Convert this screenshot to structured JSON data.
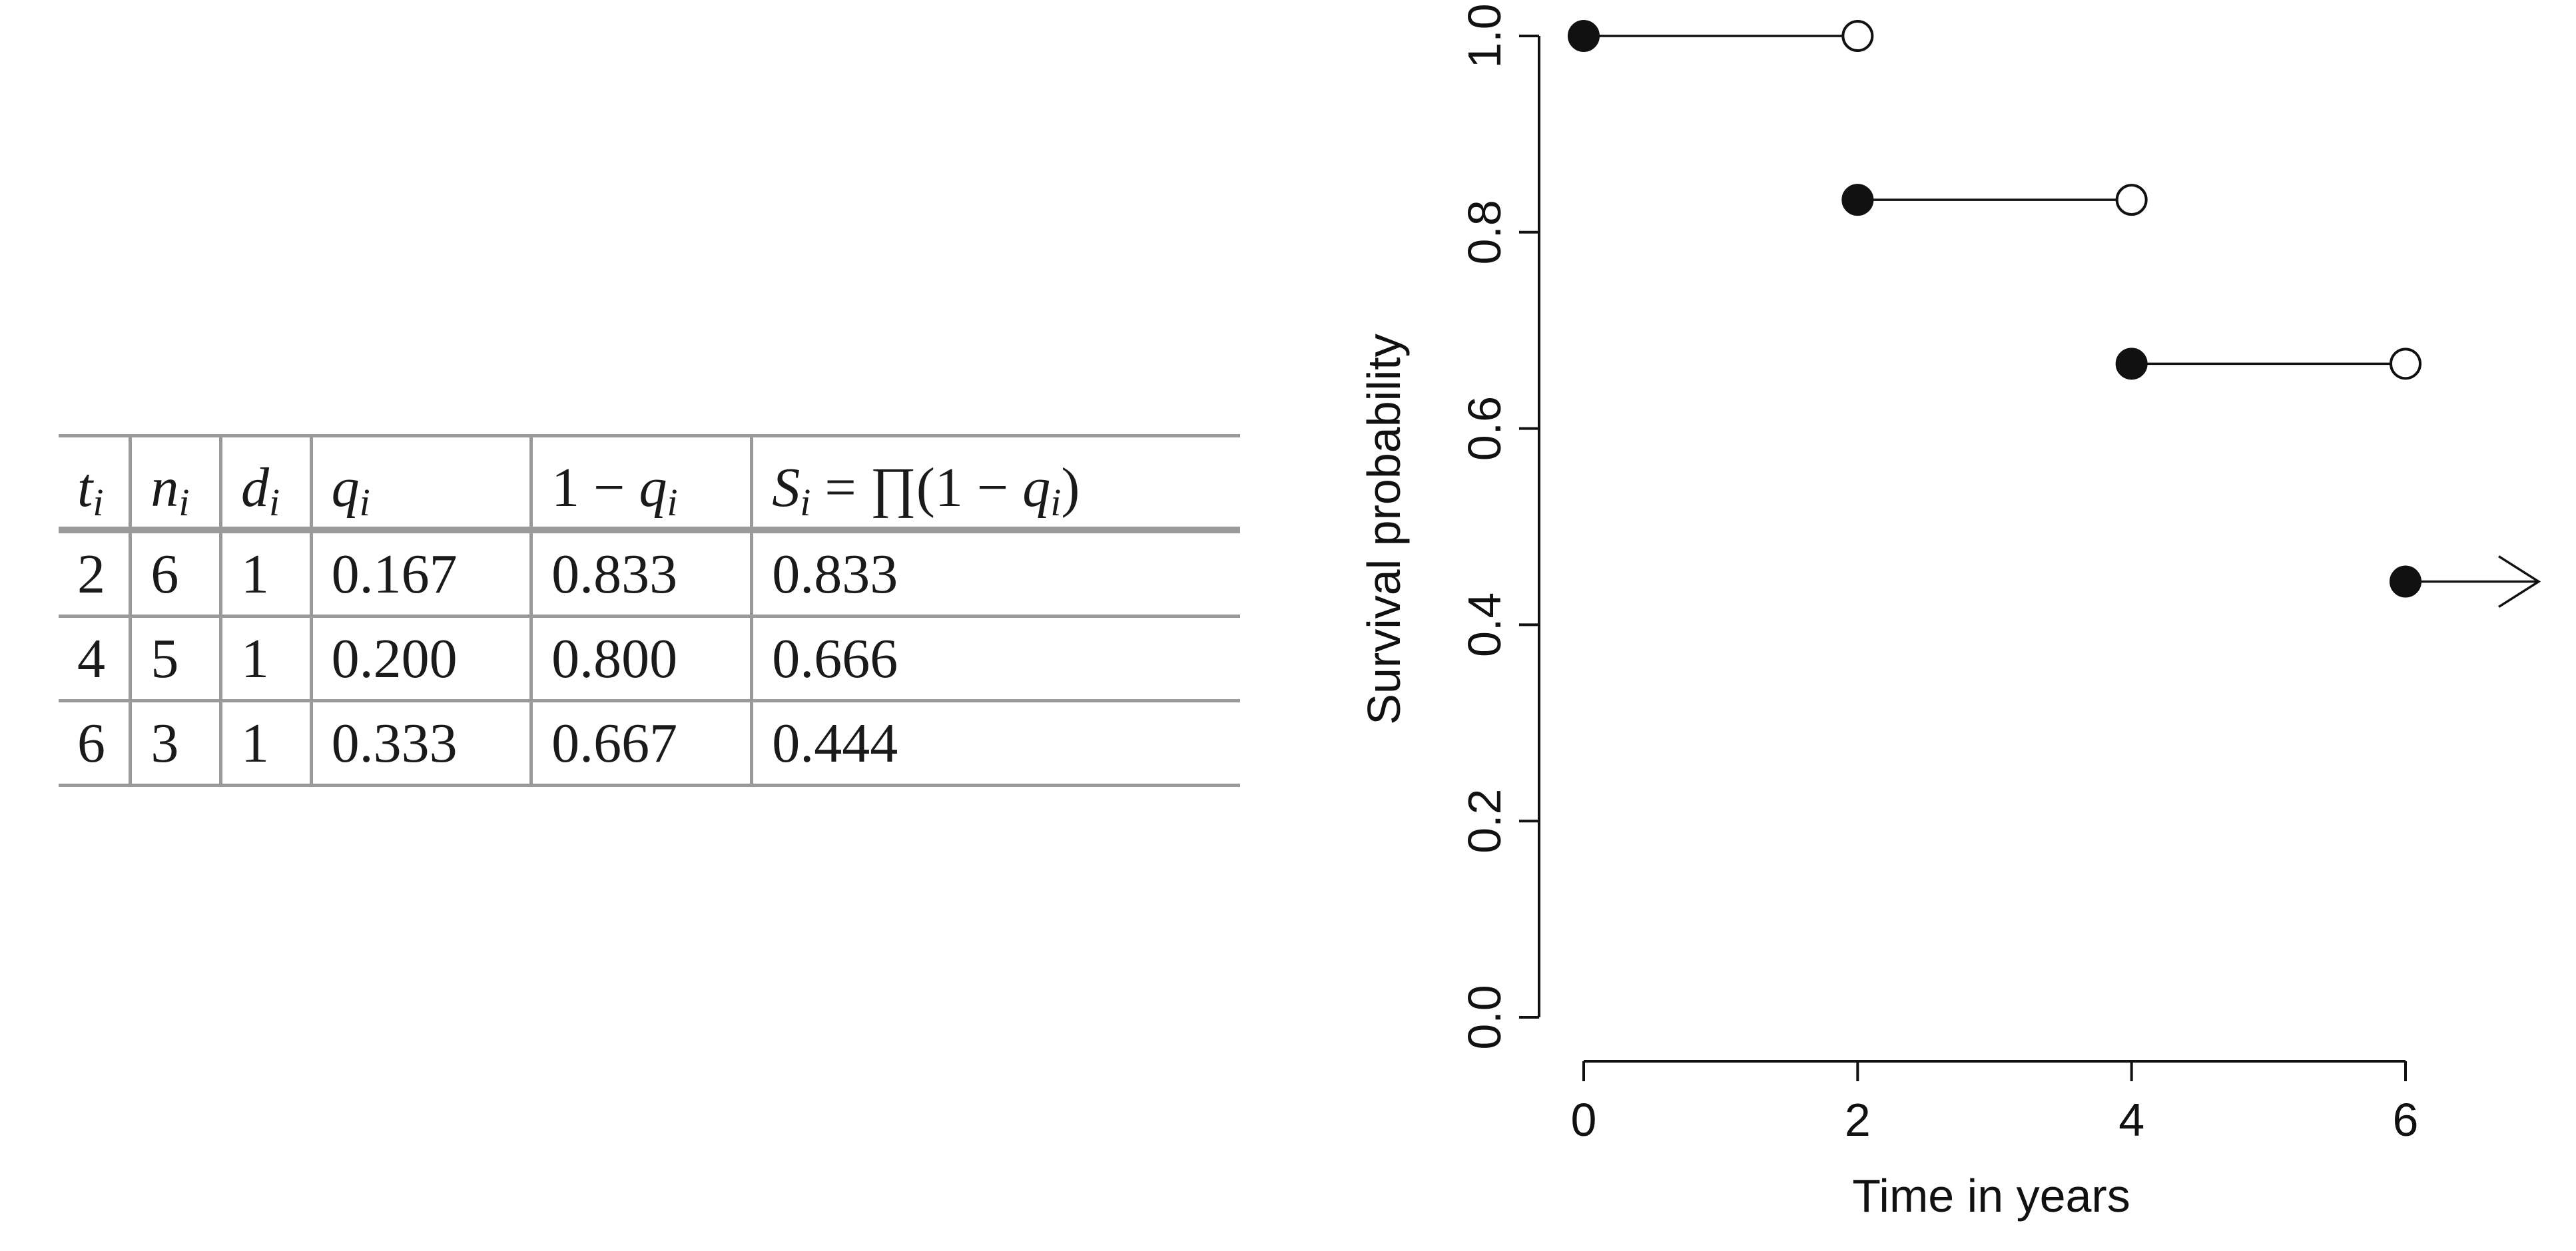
{
  "table": {
    "columns": [
      {
        "base": "t",
        "sub": "i"
      },
      {
        "base": "n",
        "sub": "i"
      },
      {
        "base": "d",
        "sub": "i"
      },
      {
        "base": "q",
        "sub": "i"
      },
      {
        "prefix": "1 − ",
        "base": "q",
        "sub": "i"
      },
      {
        "base": "S",
        "sub": "i",
        "suffix": " = ∏(1 − ",
        "base2": "q",
        "sub2": "i",
        "suffix2": ")"
      }
    ],
    "rows": [
      [
        "2",
        "6",
        "1",
        "0.167",
        "0.833",
        "0.833"
      ],
      [
        "4",
        "5",
        "1",
        "0.200",
        "0.800",
        "0.666"
      ],
      [
        "6",
        "3",
        "1",
        "0.333",
        "0.667",
        "0.444"
      ]
    ]
  },
  "chart_data": {
    "type": "line",
    "xlabel": "Time in years",
    "ylabel": "Survival probability",
    "xlim": [
      0,
      6
    ],
    "ylim": [
      0,
      1
    ],
    "xticks": [
      "0",
      "2",
      "4",
      "6"
    ],
    "yticks": [
      "0.0",
      "0.2",
      "0.4",
      "0.6",
      "0.8",
      "1.0"
    ],
    "grid": false,
    "steps": [
      {
        "x_start": 0,
        "x_end": 2,
        "y": 1.0,
        "end": "open"
      },
      {
        "x_start": 2,
        "x_end": 4,
        "y": 0.833,
        "end": "open"
      },
      {
        "x_start": 4,
        "x_end": 6,
        "y": 0.666,
        "end": "open"
      },
      {
        "x_start": 6,
        "x_end": null,
        "y": 0.444,
        "end": "arrow"
      }
    ],
    "colors": {
      "ink": "#111111",
      "open_fill": "#ffffff"
    }
  }
}
